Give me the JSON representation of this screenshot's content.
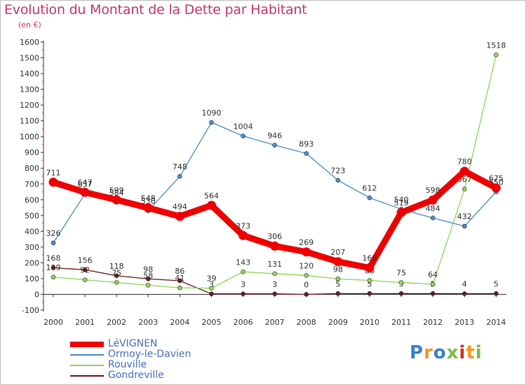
{
  "title": "Evolution du Montant de la Dette par Habitant",
  "subtitle": "(en €)",
  "logo": {
    "text": "Proxiti",
    "colors": [
      "#3a7fd0",
      "#f29a1f",
      "#3a7fd0",
      "#7bc043",
      "#d62b2b",
      "#f29a1f",
      "#7bc043"
    ]
  },
  "chart_data": {
    "type": "line",
    "x": [
      "2000",
      "2001",
      "2002",
      "2003",
      "2004",
      "2005",
      "2006",
      "2007",
      "2008",
      "2009",
      "2010",
      "2011",
      "2012",
      "2013",
      "2014"
    ],
    "ylim": [
      -100,
      1600
    ],
    "yticks": [
      "-100",
      "0",
      "100",
      "200",
      "300",
      "400",
      "500",
      "600",
      "700",
      "800",
      "900",
      "1000",
      "1100",
      "1200",
      "1300",
      "1400",
      "1500",
      "1600"
    ],
    "grid": false,
    "legend_position": "bottom-left",
    "series": [
      {
        "name": "Gondreville",
        "color": "#6b1a1a",
        "values": [
          168,
          156,
          118,
          98,
          86,
          3,
          3,
          3,
          0,
          5,
          5,
          5,
          5,
          4,
          5
        ],
        "labels": [
          "168",
          "156",
          "118",
          "98",
          "86",
          "3",
          "3",
          "3",
          "0",
          "5",
          "5",
          "5",
          "5",
          "4",
          "5"
        ]
      },
      {
        "name": "Rouville",
        "color": "#8ed65b",
        "values": [
          109,
          92,
          75,
          58,
          41,
          39,
          143,
          131,
          120,
          98,
          88,
          75,
          64,
          667,
          1518
        ],
        "labels": [
          "109",
          "92",
          "75",
          "58",
          "41",
          "39",
          "143",
          "131",
          "120",
          "98",
          "88",
          "75",
          "64",
          "667",
          "1518"
        ]
      },
      {
        "name": "Ormoy-le-Davien",
        "color": "#4a8ec9",
        "values": [
          326,
          637,
          584,
          530,
          748,
          1090,
          1004,
          946,
          893,
          723,
          612,
          540,
          484,
          432,
          650
        ],
        "labels": [
          "326",
          "637",
          "584",
          "530",
          "748",
          "1090",
          "1004",
          "946",
          "893",
          "723",
          "612",
          "540",
          "484",
          "432",
          "650"
        ]
      },
      {
        "name": "LéVIGNEN",
        "color": "#ee0000",
        "values": [
          711,
          647,
          599,
          548,
          494,
          564,
          373,
          306,
          269,
          207,
          168,
          519,
          598,
          780,
          675
        ],
        "labels": [
          "711",
          "647",
          "599",
          "548",
          "494",
          "564",
          "373",
          "306",
          "269",
          "207",
          "168",
          "519",
          "598",
          "780",
          "675"
        ]
      }
    ],
    "legend_order": [
      "LéVIGNEN",
      "Ormoy-le-Davien",
      "Rouville",
      "Gondreville"
    ]
  }
}
